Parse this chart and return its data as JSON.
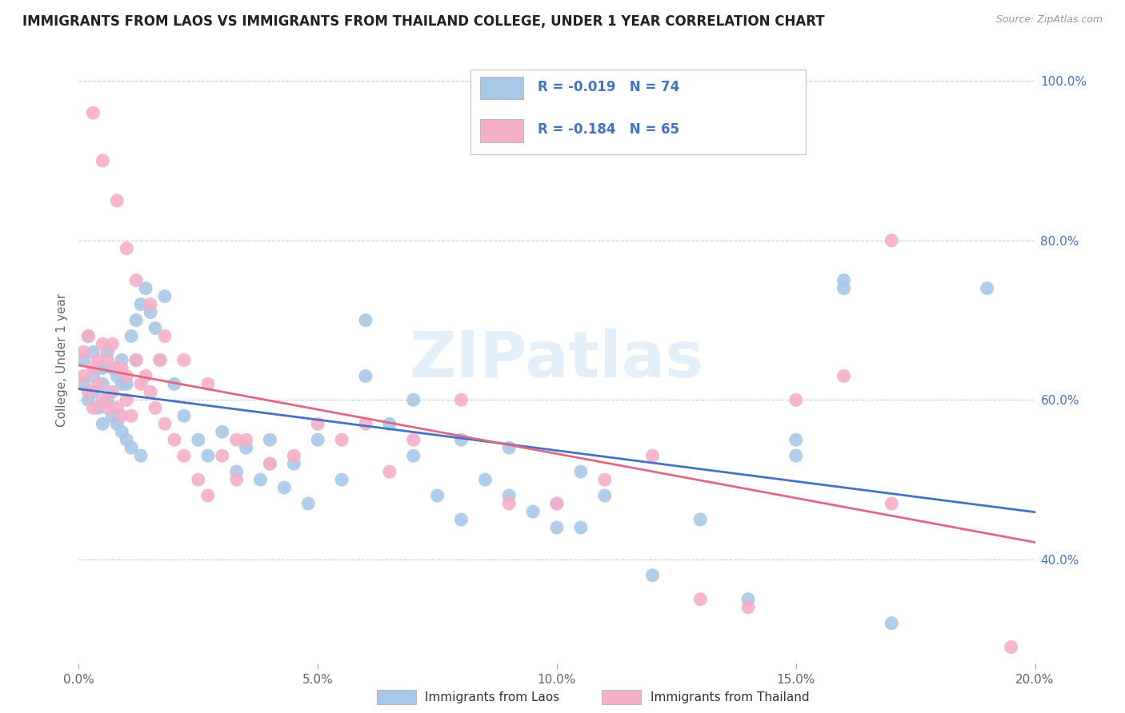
{
  "title": "IMMIGRANTS FROM LAOS VS IMMIGRANTS FROM THAILAND COLLEGE, UNDER 1 YEAR CORRELATION CHART",
  "source": "Source: ZipAtlas.com",
  "xlabel_ticks": [
    "0.0%",
    "5.0%",
    "10.0%",
    "15.0%",
    "20.0%"
  ],
  "xlabel_tick_vals": [
    0.0,
    0.05,
    0.1,
    0.15,
    0.2
  ],
  "ylabel_ticks": [
    "100.0%",
    "80.0%",
    "60.0%",
    "40.0%"
  ],
  "ylabel_tick_vals": [
    1.0,
    0.8,
    0.6,
    0.4
  ],
  "ylabel_label": "College, Under 1 year",
  "watermark": "ZIPatlas",
  "legend_R_laos": "-0.019",
  "legend_N_laos": "74",
  "legend_R_thailand": "-0.184",
  "legend_N_thailand": "65",
  "legend_label_laos": "Immigrants from Laos",
  "legend_label_thailand": "Immigrants from Thailand",
  "laos_color": "#a8c8e8",
  "thailand_color": "#f4b0c8",
  "laos_line_color": "#4472c4",
  "thailand_line_color": "#e06880",
  "laos_x": [
    0.001,
    0.001,
    0.002,
    0.002,
    0.003,
    0.003,
    0.003,
    0.004,
    0.004,
    0.005,
    0.005,
    0.005,
    0.006,
    0.006,
    0.007,
    0.007,
    0.008,
    0.008,
    0.009,
    0.009,
    0.009,
    0.01,
    0.01,
    0.011,
    0.011,
    0.012,
    0.012,
    0.013,
    0.013,
    0.014,
    0.015,
    0.016,
    0.017,
    0.018,
    0.02,
    0.022,
    0.025,
    0.027,
    0.03,
    0.033,
    0.035,
    0.038,
    0.04,
    0.043,
    0.045,
    0.048,
    0.05,
    0.055,
    0.06,
    0.065,
    0.07,
    0.075,
    0.08,
    0.085,
    0.09,
    0.095,
    0.1,
    0.105,
    0.11,
    0.12,
    0.13,
    0.14,
    0.15,
    0.16,
    0.17,
    0.06,
    0.07,
    0.08,
    0.09,
    0.1,
    0.105,
    0.15,
    0.16,
    0.19
  ],
  "laos_y": [
    0.62,
    0.65,
    0.6,
    0.68,
    0.63,
    0.61,
    0.66,
    0.64,
    0.59,
    0.64,
    0.62,
    0.57,
    0.66,
    0.6,
    0.64,
    0.58,
    0.63,
    0.57,
    0.65,
    0.56,
    0.62,
    0.62,
    0.55,
    0.68,
    0.54,
    0.7,
    0.65,
    0.72,
    0.53,
    0.74,
    0.71,
    0.69,
    0.65,
    0.73,
    0.62,
    0.58,
    0.55,
    0.53,
    0.56,
    0.51,
    0.54,
    0.5,
    0.55,
    0.49,
    0.52,
    0.47,
    0.55,
    0.5,
    0.63,
    0.57,
    0.53,
    0.48,
    0.45,
    0.5,
    0.54,
    0.46,
    0.44,
    0.51,
    0.48,
    0.38,
    0.45,
    0.35,
    0.55,
    0.74,
    0.32,
    0.7,
    0.6,
    0.55,
    0.48,
    0.47,
    0.44,
    0.53,
    0.75,
    0.74
  ],
  "thailand_x": [
    0.001,
    0.001,
    0.002,
    0.002,
    0.003,
    0.003,
    0.004,
    0.004,
    0.005,
    0.005,
    0.006,
    0.006,
    0.007,
    0.007,
    0.008,
    0.008,
    0.009,
    0.009,
    0.01,
    0.01,
    0.011,
    0.012,
    0.013,
    0.014,
    0.015,
    0.016,
    0.017,
    0.018,
    0.02,
    0.022,
    0.025,
    0.027,
    0.03,
    0.033,
    0.035,
    0.04,
    0.045,
    0.05,
    0.055,
    0.06,
    0.065,
    0.07,
    0.08,
    0.09,
    0.1,
    0.11,
    0.12,
    0.13,
    0.14,
    0.15,
    0.16,
    0.17,
    0.003,
    0.005,
    0.008,
    0.01,
    0.012,
    0.015,
    0.018,
    0.022,
    0.027,
    0.033,
    0.04,
    0.17,
    0.195
  ],
  "thailand_y": [
    0.63,
    0.66,
    0.61,
    0.68,
    0.64,
    0.59,
    0.65,
    0.62,
    0.67,
    0.6,
    0.65,
    0.59,
    0.67,
    0.61,
    0.64,
    0.59,
    0.64,
    0.58,
    0.63,
    0.6,
    0.58,
    0.65,
    0.62,
    0.63,
    0.61,
    0.59,
    0.65,
    0.57,
    0.55,
    0.53,
    0.5,
    0.48,
    0.53,
    0.5,
    0.55,
    0.52,
    0.53,
    0.57,
    0.55,
    0.57,
    0.51,
    0.55,
    0.6,
    0.47,
    0.47,
    0.5,
    0.53,
    0.35,
    0.34,
    0.6,
    0.63,
    0.47,
    0.96,
    0.9,
    0.85,
    0.79,
    0.75,
    0.72,
    0.68,
    0.65,
    0.62,
    0.55,
    0.52,
    0.8,
    0.29
  ],
  "xlim": [
    0.0,
    0.2
  ],
  "ylim": [
    0.27,
    1.03
  ],
  "figsize": [
    14.06,
    8.92
  ],
  "dpi": 100
}
